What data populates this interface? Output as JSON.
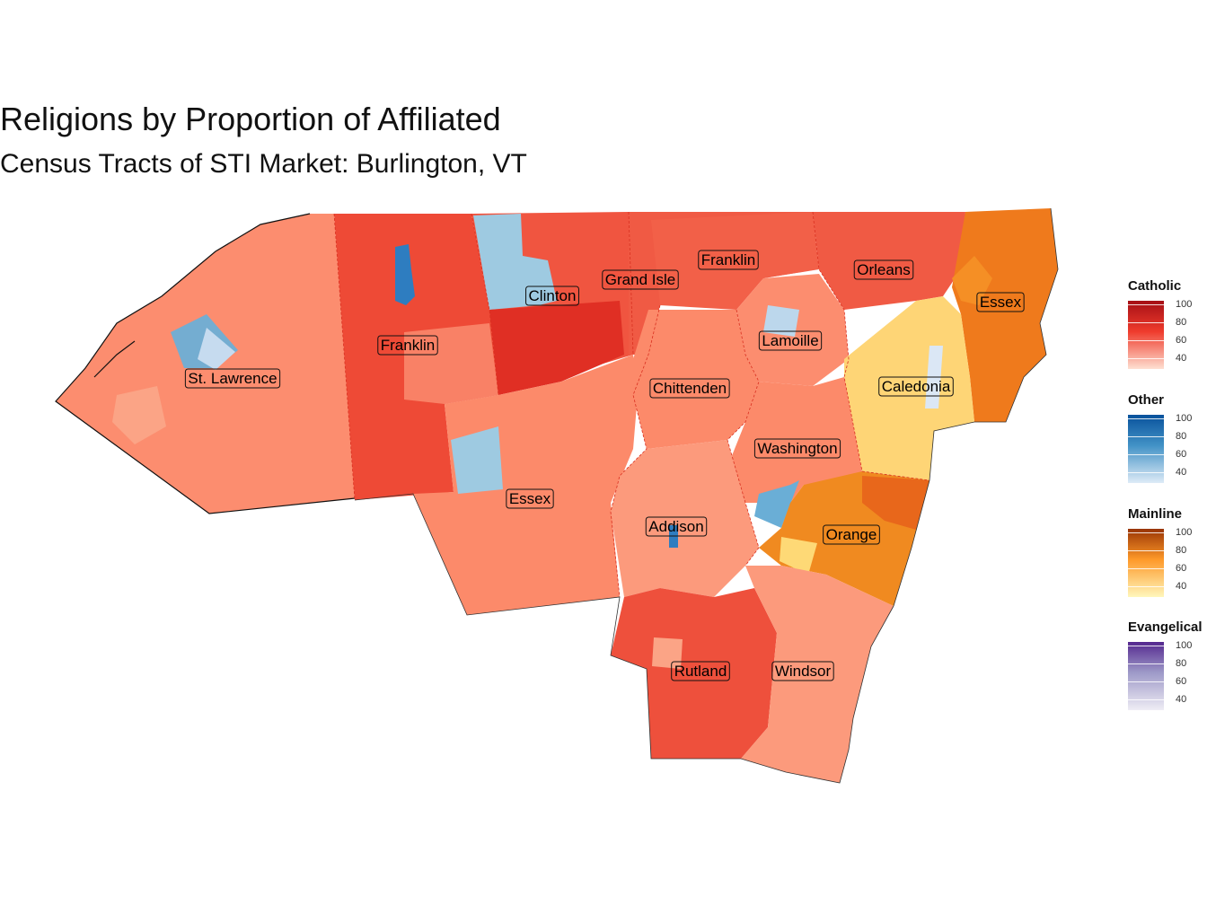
{
  "title": "Religions by Proportion of Affiliated",
  "subtitle": "Census Tracts of STI Market: Burlington, VT",
  "map": {
    "labels": {
      "st_lawrence": "St. Lawrence",
      "franklin_ny": "Franklin",
      "clinton": "Clinton",
      "grand_isle": "Grand Isle",
      "franklin_vt": "Franklin",
      "orleans": "Orleans",
      "essex_vt": "Essex",
      "lamoille": "Lamoille",
      "chittenden": "Chittenden",
      "caledonia": "Caledonia",
      "washington": "Washington",
      "essex_ny": "Essex",
      "addison": "Addison",
      "orange": "Orange",
      "rutland": "Rutland",
      "windsor": "Windsor"
    },
    "colors": {
      "catholic_light": "#fc8d6f",
      "catholic_mid": "#f05a44",
      "catholic_dark": "#e03526",
      "other_light": "#9ecae1",
      "other_dark": "#2b7bba",
      "mainline_light": "#fed976",
      "mainline_mid": "#f28022",
      "mainline_dark": "#e8671b"
    }
  },
  "legends": [
    {
      "title": "Catholic",
      "ticks": [
        "100",
        "80",
        "60",
        "40"
      ],
      "color_low": "#fee0d2",
      "color_mid": "#ef3b2c",
      "color_high": "#a50f15"
    },
    {
      "title": "Other",
      "ticks": [
        "100",
        "80",
        "60",
        "40"
      ],
      "color_low": "#deebf7",
      "color_mid": "#4292c6",
      "color_high": "#08519c"
    },
    {
      "title": "Mainline",
      "ticks": [
        "100",
        "80",
        "60",
        "40"
      ],
      "color_low": "#fff7bc",
      "color_mid": "#fe9929",
      "color_high": "#993404"
    },
    {
      "title": "Evangelical",
      "ticks": [
        "100",
        "80",
        "60",
        "40"
      ],
      "color_low": "#efedf5",
      "color_mid": "#9e9ac8",
      "color_high": "#54278f"
    }
  ]
}
